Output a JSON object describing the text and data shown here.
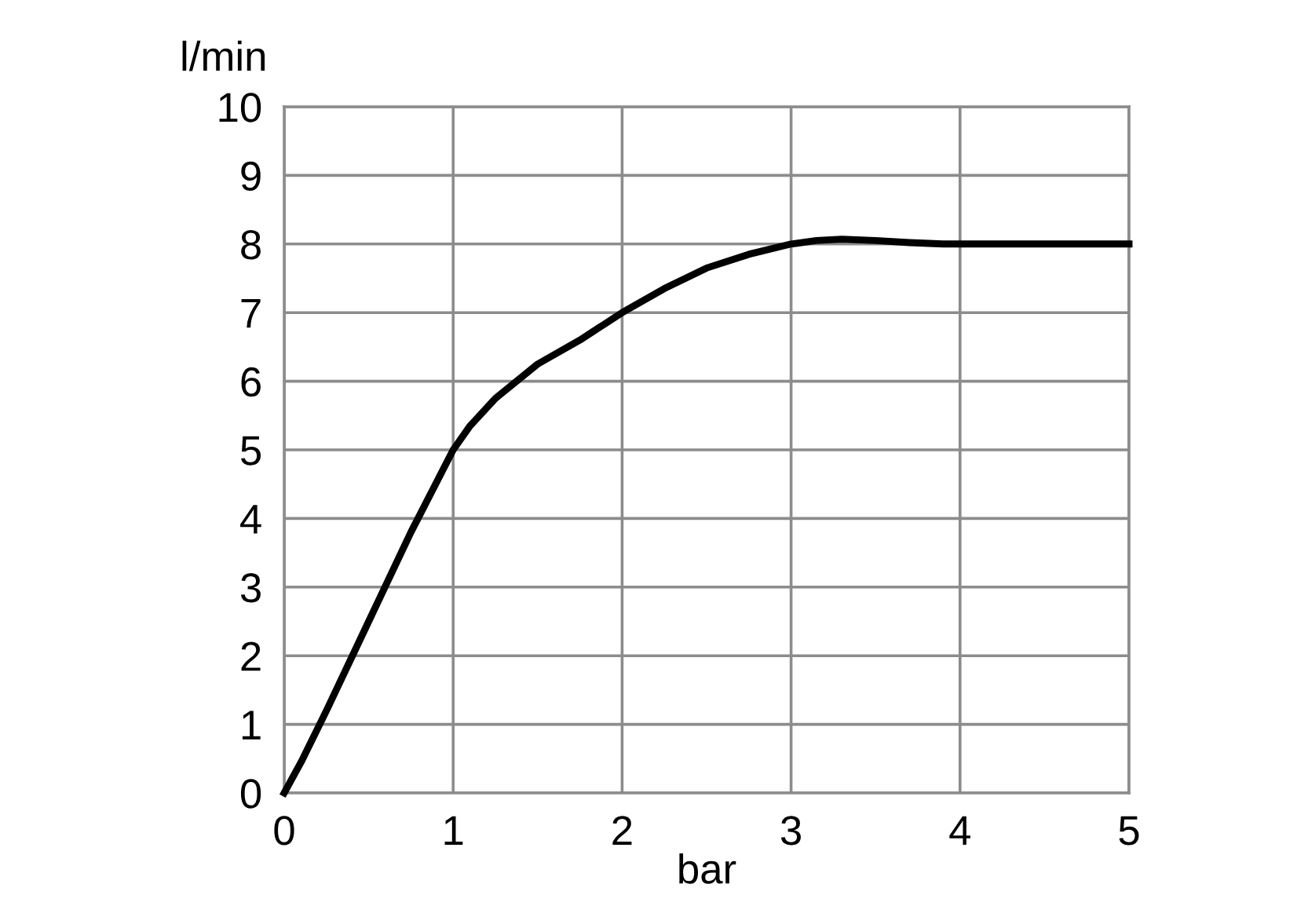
{
  "chart_data": {
    "type": "line",
    "xlabel": "bar",
    "ylabel": "l/min",
    "x": [
      0,
      0.1,
      0.25,
      0.5,
      0.75,
      1,
      1.1,
      1.25,
      1.5,
      1.75,
      2,
      2.25,
      2.5,
      2.75,
      3,
      3.15,
      3.3,
      3.5,
      3.7,
      3.9,
      4,
      4.5,
      5
    ],
    "series": [
      {
        "color": "#000000",
        "values": [
          0,
          0.45,
          1.2,
          2.5,
          3.8,
          5,
          5.35,
          5.75,
          6.25,
          6.6,
          7,
          7.35,
          7.65,
          7.85,
          8,
          8.05,
          8.07,
          8.05,
          8.02,
          8,
          8,
          8,
          8
        ]
      }
    ],
    "xlim": [
      0,
      5
    ],
    "ylim": [
      0,
      10
    ],
    "xticks": [
      0,
      1,
      2,
      3,
      4,
      5
    ],
    "yticks": [
      0,
      1,
      2,
      3,
      4,
      5,
      6,
      7,
      8,
      9,
      10
    ],
    "grid": true,
    "marker": "none",
    "line_style": "solid"
  }
}
